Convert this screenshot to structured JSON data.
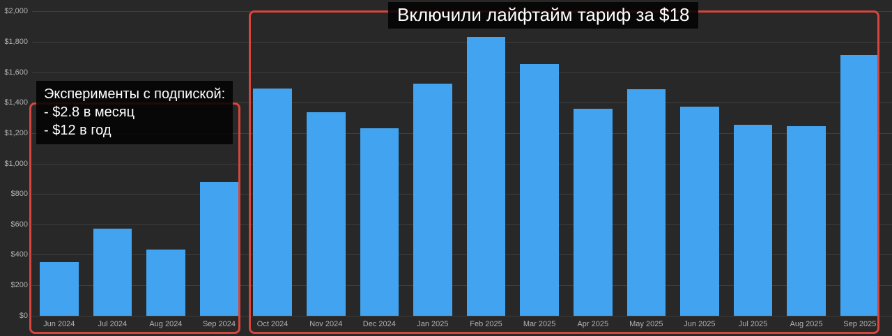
{
  "chart_data": {
    "type": "bar",
    "categories": [
      "Jun 2024",
      "Jul 2024",
      "Aug 2024",
      "Sep 2024",
      "Oct 2024",
      "Nov 2024",
      "Dec 2024",
      "Jan 2025",
      "Feb 2025",
      "Mar 2025",
      "Apr 2025",
      "May 2025",
      "Jun 2025",
      "Jul 2025",
      "Aug 2025",
      "Sep 2025"
    ],
    "values": [
      350,
      570,
      435,
      880,
      1495,
      1335,
      1230,
      1525,
      1830,
      1655,
      1360,
      1490,
      1375,
      1255,
      1245,
      1715
    ],
    "ylim": [
      0,
      2000
    ],
    "ytick_step": 200,
    "ytick_labels": [
      "$0",
      "$200",
      "$400",
      "$600",
      "$800",
      "$1,000",
      "$1,200",
      "$1,400",
      "$1,600",
      "$1,800",
      "$2,000"
    ],
    "grid": true,
    "legend": "none",
    "xlabel": "",
    "ylabel": ""
  },
  "annotations": {
    "experiments_box": {
      "line1": "Эксперименты с подпиской:",
      "line2": "- $2.8 в месяц",
      "line3": "- $12 в год"
    },
    "lifetime_box": {
      "text": "Включили лайфтайм тариф за $18"
    },
    "groups": [
      {
        "name": "subscription-experiments",
        "from": "Jun 2024",
        "to": "Sep 2024"
      },
      {
        "name": "lifetime-tariff",
        "from": "Oct 2024",
        "to": "Sep 2025"
      }
    ]
  },
  "colors": {
    "background": "#282828",
    "gridline": "#3e3e3e",
    "tick_text": "#b2b2b2",
    "bar": "#42a4f0",
    "highlight_red": "#d8453c",
    "annotation_bg": "#020202",
    "annotation_text": "#ffffff"
  }
}
